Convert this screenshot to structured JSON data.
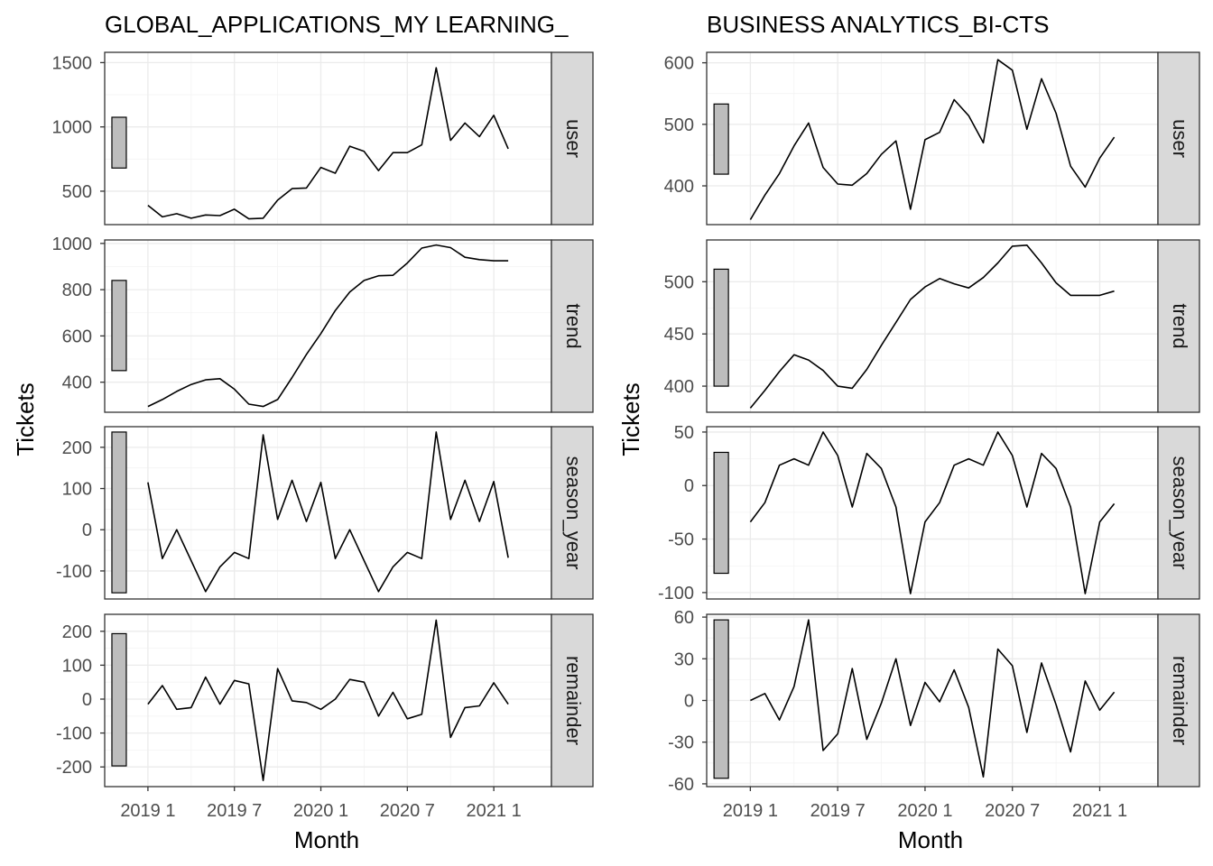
{
  "chart_data": [
    {
      "type": "line",
      "title": "GLOBAL_APPLICATIONS_MY LEARNING_",
      "xlabel": "Month",
      "ylabel": "Tickets",
      "x": [
        "2019-01",
        "2019-02",
        "2019-03",
        "2019-04",
        "2019-05",
        "2019-06",
        "2019-07",
        "2019-08",
        "2019-09",
        "2019-10",
        "2019-11",
        "2019-12",
        "2020-01",
        "2020-02",
        "2020-03",
        "2020-04",
        "2020-05",
        "2020-06",
        "2020-07",
        "2020-08",
        "2020-09",
        "2020-10",
        "2020-11",
        "2020-12",
        "2021-01",
        "2021-02"
      ],
      "x_ticks": [
        "2019 1",
        "2019 7",
        "2020 1",
        "2020 7",
        "2021 1"
      ],
      "xlim": [
        "2018-10",
        "2021-05"
      ],
      "grid": true,
      "facets": [
        {
          "strip": "user",
          "ylim": [
            240,
            1580
          ],
          "y_ticks": [
            500,
            1000,
            1500
          ],
          "y_tick_labels": [
            "500",
            "1000",
            "1500"
          ],
          "range_bar": [
            680,
            1075
          ],
          "values": [
            390,
            300,
            325,
            290,
            315,
            310,
            360,
            285,
            290,
            430,
            520,
            525,
            685,
            640,
            850,
            810,
            660,
            800,
            800,
            860,
            1460,
            895,
            1030,
            925,
            1090,
            830
          ]
        },
        {
          "strip": "trend",
          "ylim": [
            270,
            1015
          ],
          "y_ticks": [
            400,
            600,
            800,
            1000
          ],
          "y_tick_labels": [
            "400",
            "600",
            "800",
            "1000"
          ],
          "range_bar": [
            450,
            840
          ],
          "values": [
            295,
            325,
            360,
            390,
            410,
            415,
            370,
            305,
            295,
            325,
            420,
            520,
            610,
            710,
            790,
            840,
            860,
            862,
            915,
            980,
            993,
            982,
            940,
            930,
            925,
            925
          ]
        },
        {
          "strip": "season_year",
          "ylim": [
            -168,
            250
          ],
          "y_ticks": [
            -100,
            0,
            100,
            200
          ],
          "y_tick_labels": [
            "-100",
            "0",
            "100",
            "200"
          ],
          "range_bar": [
            -153,
            237
          ],
          "values": [
            115,
            -70,
            0,
            -75,
            -150,
            -90,
            -55,
            -70,
            230,
            25,
            120,
            20,
            115,
            -70,
            0,
            -75,
            -150,
            -90,
            -55,
            -70,
            237,
            25,
            120,
            20,
            117,
            -68
          ]
        },
        {
          "strip": "remainder",
          "ylim": [
            -258,
            250
          ],
          "y_ticks": [
            -200,
            -100,
            0,
            100,
            200
          ],
          "y_tick_labels": [
            "-200",
            "-100",
            "0",
            "100",
            "200"
          ],
          "range_bar": [
            -197,
            193
          ],
          "values": [
            -15,
            40,
            -30,
            -25,
            65,
            -15,
            55,
            45,
            -240,
            90,
            -5,
            -10,
            -30,
            0,
            58,
            50,
            -50,
            20,
            -58,
            -45,
            233,
            -113,
            -25,
            -20,
            48,
            -15
          ]
        }
      ]
    },
    {
      "type": "line",
      "title": "BUSINESS ANALYTICS_BI-CTS",
      "xlabel": "Month",
      "ylabel": "Tickets",
      "x": [
        "2019-01",
        "2019-02",
        "2019-03",
        "2019-04",
        "2019-05",
        "2019-06",
        "2019-07",
        "2019-08",
        "2019-09",
        "2019-10",
        "2019-11",
        "2019-12",
        "2020-01",
        "2020-02",
        "2020-03",
        "2020-04",
        "2020-05",
        "2020-06",
        "2020-07",
        "2020-08",
        "2020-09",
        "2020-10",
        "2020-11",
        "2020-12",
        "2021-01",
        "2021-02"
      ],
      "x_ticks": [
        "2019 1",
        "2019 7",
        "2020 1",
        "2020 7",
        "2021 1"
      ],
      "xlim": [
        "2018-10",
        "2021-05"
      ],
      "grid": true,
      "facets": [
        {
          "strip": "user",
          "ylim": [
            337,
            617
          ],
          "y_ticks": [
            400,
            500,
            600
          ],
          "y_tick_labels": [
            "400",
            "500",
            "600"
          ],
          "range_bar": [
            419,
            533
          ],
          "values": [
            345,
            385,
            420,
            465,
            502,
            430,
            403,
            401,
            420,
            451,
            473,
            362,
            475,
            487,
            540,
            514,
            470,
            605,
            588,
            492,
            574,
            518,
            432,
            398,
            445,
            479
          ]
        },
        {
          "strip": "trend",
          "ylim": [
            375,
            540
          ],
          "y_ticks": [
            400,
            450,
            500
          ],
          "y_tick_labels": [
            "400",
            "450",
            "500"
          ],
          "range_bar": [
            400,
            512
          ],
          "values": [
            379,
            396,
            414,
            430,
            425,
            415,
            400,
            398,
            416,
            439,
            461,
            483,
            495,
            503,
            498,
            494,
            504,
            518,
            534,
            535,
            518,
            499,
            487,
            487,
            487,
            491
          ]
        },
        {
          "strip": "season_year",
          "ylim": [
            -106,
            55
          ],
          "y_ticks": [
            -100,
            -50,
            0,
            50
          ],
          "y_tick_labels": [
            "-100",
            "-50",
            "0",
            "50"
          ],
          "range_bar": [
            -82,
            31
          ],
          "values": [
            -34,
            -16,
            19,
            25,
            19,
            50,
            28,
            -20,
            30,
            16,
            -20,
            -101,
            -34,
            -16,
            19,
            25,
            19,
            50,
            28,
            -20,
            30,
            16,
            -20,
            -101,
            -34,
            -17
          ]
        },
        {
          "strip": "remainder",
          "ylim": [
            -62,
            62
          ],
          "y_ticks": [
            -60,
            -30,
            0,
            30,
            60
          ],
          "y_tick_labels": [
            "-60",
            "-30",
            "0",
            "30",
            "60"
          ],
          "range_bar": [
            -56,
            58
          ],
          "values": [
            0,
            5,
            -14,
            10,
            58,
            -36,
            -24,
            23,
            -28,
            -2,
            30,
            -18,
            13,
            -1,
            22,
            -5,
            -55,
            37,
            25,
            -23,
            27,
            -3,
            -37,
            14,
            -7,
            6
          ]
        }
      ]
    }
  ]
}
